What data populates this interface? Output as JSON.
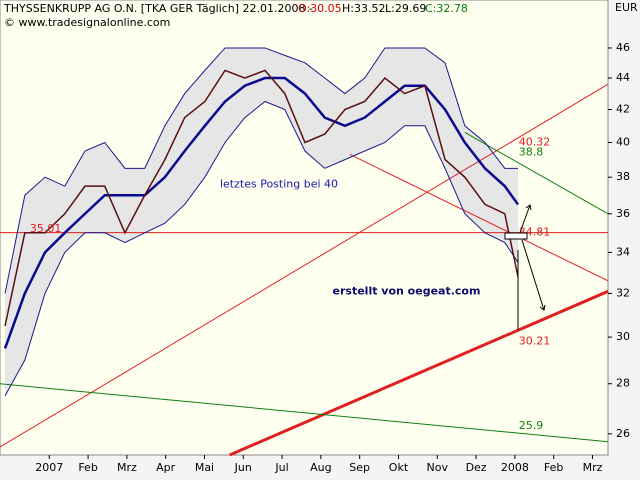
{
  "header": {
    "title": "THYSSENKRUPP AG O.N. [TKA GER  Täglich] 22.01.2008 -",
    "open": "O:30.05",
    "high": "H:33.52",
    "low": "L:29.69",
    "close": "C:32.78",
    "source": "© www.tradesignalonline.com",
    "currency": "EUR"
  },
  "chart_data": {
    "type": "line",
    "log_scale": true,
    "background": "#fffff0",
    "band_fill": "#e6e6e6",
    "x": [
      -0.64,
      -0.13,
      0.39,
      0.9,
      1.42,
      1.93,
      2.45,
      2.96,
      3.48,
      3.99,
      4.51,
      5.03,
      5.54,
      6.06,
      6.57,
      7.09,
      7.6,
      8.12,
      8.63,
      9.15,
      9.66,
      10.18,
      10.7,
      11.21,
      11.73,
      12.24,
      12.58
    ],
    "series": [
      {
        "name": "Upper Band",
        "color": "#1a1a8c",
        "width": 1,
        "values": [
          32,
          37,
          38,
          37.5,
          39.5,
          40,
          38.5,
          38.5,
          41,
          43,
          44.5,
          46,
          46,
          46,
          45.5,
          45,
          44,
          43,
          44,
          46,
          46,
          46,
          45,
          41,
          40,
          38.5,
          38.5
        ]
      },
      {
        "name": "Lower Band",
        "color": "#1a1a8c",
        "width": 1,
        "values": [
          27.5,
          29,
          32,
          34,
          35,
          35,
          34.5,
          35,
          35.5,
          36.5,
          38,
          40,
          41.5,
          42.5,
          42,
          39.5,
          38.5,
          39,
          39.5,
          40,
          41,
          41,
          38.5,
          36,
          35,
          34.5,
          33.5
        ]
      },
      {
        "name": "Moving Average",
        "color": "#0a0a90",
        "width": 2.5,
        "values": [
          29.5,
          32,
          34,
          35,
          36,
          37,
          37,
          37,
          38,
          39.5,
          41,
          42.5,
          43.5,
          44,
          44,
          43,
          41.5,
          41,
          41.5,
          42.5,
          43.5,
          43.5,
          42,
          40,
          38.5,
          37.5,
          36.5
        ]
      },
      {
        "name": "Close",
        "color": "#5a1010",
        "width": 1.5,
        "values": [
          30.5,
          35,
          35,
          36,
          37.5,
          37.5,
          35,
          37,
          39,
          41.5,
          42.5,
          44.5,
          44,
          44.5,
          43,
          40,
          40.5,
          42,
          42.5,
          44,
          43,
          43.5,
          39,
          38,
          36.5,
          36,
          32.8
        ]
      }
    ],
    "xlim": [
      -0.77,
      14.9
    ],
    "ylim": [
      25.2,
      48.8
    ],
    "xticks": [
      {
        "value": 0.5,
        "label": "2007"
      },
      {
        "value": 1.5,
        "label": "Feb"
      },
      {
        "value": 2.5,
        "label": "Mrz"
      },
      {
        "value": 3.5,
        "label": "Apr"
      },
      {
        "value": 4.5,
        "label": "Mai"
      },
      {
        "value": 5.5,
        "label": "Jun"
      },
      {
        "value": 6.5,
        "label": "Jul"
      },
      {
        "value": 7.5,
        "label": "Aug"
      },
      {
        "value": 8.5,
        "label": "Sep"
      },
      {
        "value": 9.5,
        "label": "Okt"
      },
      {
        "value": 10.5,
        "label": "Nov"
      },
      {
        "value": 11.5,
        "label": "Dez"
      },
      {
        "value": 12.5,
        "label": "2008"
      },
      {
        "value": 13.5,
        "label": "Feb"
      },
      {
        "value": 14.5,
        "label": "Mrz"
      }
    ],
    "yticks": [
      26,
      28,
      30,
      32,
      34,
      36,
      38,
      40,
      42,
      44,
      46
    ],
    "trend_lines": [
      {
        "color": "#e02020",
        "width": 1,
        "x": [
          -0.77,
          14.9
        ],
        "y": [
          25.5,
          43.6
        ]
      },
      {
        "color": "#e02020",
        "width": 3,
        "x": [
          5.15,
          14.9
        ],
        "y": [
          25.2,
          32.1
        ]
      },
      {
        "color": "#e02020",
        "width": 1,
        "x": [
          -0.77,
          14.9
        ],
        "y": [
          35.01,
          35.01
        ]
      },
      {
        "color": "#e02020",
        "width": 1,
        "x": [
          8.25,
          14.9
        ],
        "y": [
          39.3,
          32.6
        ]
      },
      {
        "color": "#108010",
        "width": 1,
        "x": [
          11.21,
          14.9
        ],
        "y": [
          40.6,
          36.0
        ]
      },
      {
        "color": "#108010",
        "width": 1,
        "x": [
          -0.77,
          14.9
        ],
        "y": [
          28.0,
          25.7
        ]
      }
    ],
    "annotations": [
      {
        "text": "35.01",
        "x": 0.0,
        "y": 35.2,
        "color": "#e02020"
      },
      {
        "text": "40.32",
        "x": 12.6,
        "y": 40.0,
        "color": "#e02020"
      },
      {
        "text": "38.8",
        "x": 12.6,
        "y": 39.4,
        "color": "#108010"
      },
      {
        "text": "34.81",
        "x": 12.6,
        "y": 35.01,
        "color": "#e02020"
      },
      {
        "text": "30.21",
        "x": 12.6,
        "y": 29.8,
        "color": "#e02020"
      },
      {
        "text": "25.9",
        "x": 12.6,
        "y": 26.3,
        "color": "#108010"
      },
      {
        "text": "letztes Posting bei 40",
        "x": 4.9,
        "y": 37.6,
        "color": "#1a1ab0"
      },
      {
        "text": "erstellt von oegeat.com",
        "x": 7.8,
        "y": 32.1,
        "color": "#0a0a70",
        "bold": true
      }
    ]
  }
}
